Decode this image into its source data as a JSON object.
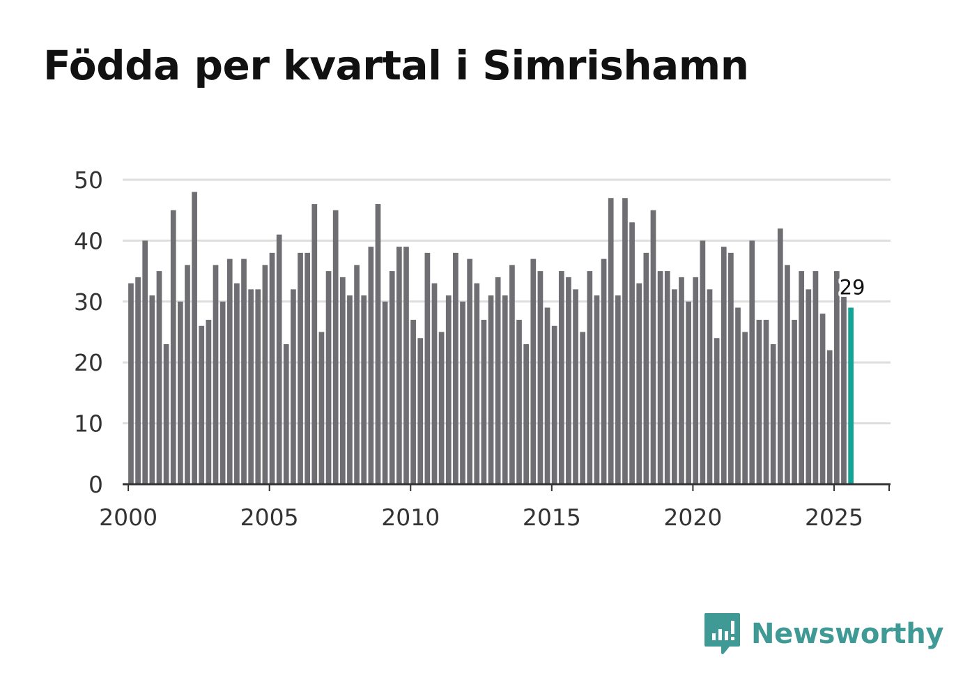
{
  "title": "Födda per kvartal i Simrishamn",
  "brand": {
    "name": "Newsworthy",
    "color": "#3f9a96",
    "icon": "newsworthy-logo-icon"
  },
  "colors": {
    "bar": "#6e6e73",
    "highlight": "#12a596",
    "grid": "#dedede",
    "axis": "#333333"
  },
  "chart_data": {
    "type": "bar",
    "title": "Födda per kvartal i Simrishamn",
    "xlabel": "",
    "ylabel": "",
    "ylim": [
      0,
      50
    ],
    "yticks": [
      0,
      10,
      20,
      30,
      40,
      50
    ],
    "xticks": [
      2000,
      2005,
      2010,
      2015,
      2020,
      2025
    ],
    "xlim": [
      1999.8,
      2027.0
    ],
    "start_year": 2000,
    "periods_per_year": 4,
    "grid": true,
    "values": [
      33,
      34,
      40,
      31,
      35,
      23,
      45,
      30,
      36,
      48,
      26,
      27,
      36,
      30,
      37,
      33,
      37,
      32,
      32,
      36,
      38,
      41,
      23,
      32,
      38,
      38,
      46,
      25,
      35,
      45,
      34,
      31,
      36,
      31,
      39,
      46,
      30,
      35,
      39,
      39,
      27,
      24,
      38,
      33,
      25,
      31,
      38,
      30,
      37,
      33,
      27,
      31,
      34,
      31,
      36,
      27,
      23,
      37,
      35,
      29,
      26,
      35,
      34,
      32,
      25,
      35,
      31,
      37,
      47,
      31,
      47,
      43,
      33,
      38,
      45,
      35,
      35,
      32,
      34,
      30,
      34,
      40,
      32,
      24,
      39,
      38,
      29,
      25,
      40,
      27,
      27,
      23,
      42,
      36,
      27,
      35,
      32,
      35,
      28,
      22,
      35,
      31,
      29
    ],
    "highlight_index": 102,
    "highlight_label": "29"
  }
}
